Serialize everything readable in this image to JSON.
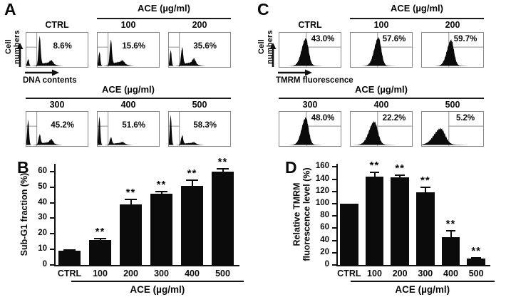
{
  "figure": {
    "panel_a": {
      "label": "A",
      "y_axis": "Cell numbers",
      "x_axis": "DNA contents",
      "kind": "dna",
      "gate": {
        "v": 0.17,
        "h": 0.42,
        "side": "left"
      },
      "rows": [
        {
          "header": "ACE (µg/ml)",
          "header_from": 1,
          "histograms": [
            {
              "title": "CTRL",
              "value": "8.6%",
              "shape": {
                "debris": 0.22,
                "g1": 0.9,
                "tail": 0.1,
                "g2": 0.1
              }
            },
            {
              "title": "100",
              "value": "15.6%",
              "shape": {
                "debris": 0.45,
                "g1": 0.78,
                "tail": 0.12,
                "g2": 0.08
              }
            },
            {
              "title": "200",
              "value": "35.6%",
              "shape": {
                "debris": 0.5,
                "g1": 0.55,
                "tail": 0.1,
                "g2": 0.16
              }
            }
          ]
        },
        {
          "header": "ACE (µg/ml)",
          "header_from": 0,
          "histograms": [
            {
              "title": "300",
              "value": "45.2%",
              "shape": {
                "debris": 0.8,
                "g1": 0.3,
                "tail": 0.08,
                "g2": 0.12
              }
            },
            {
              "title": "400",
              "value": "51.6%",
              "shape": {
                "debris": 0.9,
                "g1": 0.22,
                "tail": 0.06,
                "g2": 0.05
              }
            },
            {
              "title": "500",
              "value": "58.3%",
              "shape": {
                "debris": 0.95,
                "g1": 0.28,
                "tail": 0.06,
                "g2": 0.04
              }
            }
          ]
        }
      ]
    },
    "panel_c": {
      "label": "C",
      "y_axis": "Cell numbers",
      "x_axis": "TMRM fluorescence",
      "kind": "tmrm",
      "gate": {
        "v": 0.44,
        "h": 0.42,
        "side": "right"
      },
      "rows": [
        {
          "header": "ACE (µg/ml)",
          "header_from": 1,
          "histograms": [
            {
              "title": "CTRL",
              "value": "43.0%",
              "shape": {
                "center": 38,
                "width": 5.5,
                "height": 0.85
              }
            },
            {
              "title": "100",
              "value": "57.6%",
              "shape": {
                "center": 40,
                "width": 5.5,
                "height": 0.88
              }
            },
            {
              "title": "200",
              "value": "59.7%",
              "shape": {
                "center": 42,
                "width": 5.5,
                "height": 0.8
              }
            }
          ]
        },
        {
          "header": "ACE (µg/ml)",
          "header_from": 0,
          "histograms": [
            {
              "title": "300",
              "value": "48.0%",
              "shape": {
                "center": 38,
                "width": 5.5,
                "height": 0.85
              }
            },
            {
              "title": "400",
              "value": "22.2%",
              "shape": {
                "center": 34,
                "width": 7.0,
                "height": 0.72
              }
            },
            {
              "title": "500",
              "value": "5.2%",
              "shape": {
                "center": 27,
                "width": 9.0,
                "height": 0.5
              }
            }
          ]
        }
      ]
    }
  },
  "chart_data": [
    {
      "panel": "B",
      "type": "bar",
      "categories": [
        "CTRL",
        "100",
        "200",
        "300",
        "400",
        "500"
      ],
      "values": [
        9,
        16,
        39,
        46,
        51,
        60
      ],
      "errors": [
        0.7,
        0.8,
        3,
        1.2,
        3.5,
        2
      ],
      "significance": [
        "",
        "**",
        "**",
        "**",
        "**",
        "**"
      ],
      "ylabel_lines": [
        "Sub-G1 fraction (%)"
      ],
      "xlabel": "ACE (µg/ml)",
      "ylim": [
        0,
        65
      ],
      "yticks": [
        0,
        10,
        20,
        30,
        40,
        50,
        60
      ],
      "grid": false,
      "bar_color": "#0b0b0b"
    },
    {
      "panel": "D",
      "type": "bar",
      "categories": [
        "CTRL",
        "100",
        "200",
        "300",
        "400",
        "500"
      ],
      "values": [
        100,
        144,
        143,
        118,
        45,
        10
      ],
      "errors": [
        0,
        7,
        3,
        9,
        11,
        2
      ],
      "significance": [
        "",
        "**",
        "**",
        "**",
        "**",
        "**"
      ],
      "ylabel_lines": [
        "Relative TMRM",
        "fluorescence level (%)"
      ],
      "xlabel": "ACE (µg/ml)",
      "ylim": [
        0,
        165
      ],
      "yticks": [
        0,
        20,
        40,
        60,
        80,
        100,
        120,
        140,
        160
      ],
      "grid": false,
      "bar_color": "#0b0b0b"
    }
  ]
}
